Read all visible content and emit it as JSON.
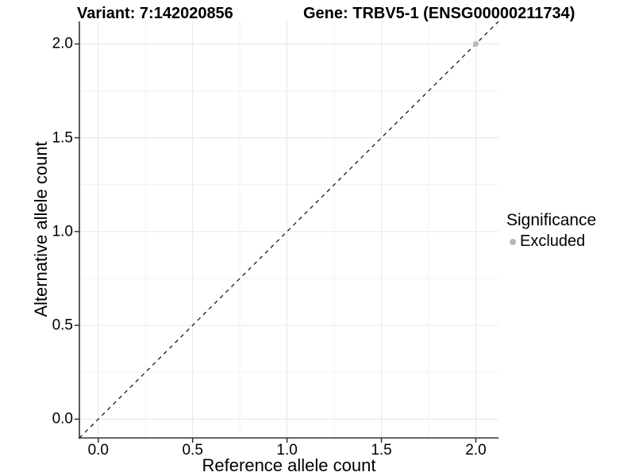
{
  "header": {
    "variant_title": "Variant: 7:142020856",
    "gene_title": "Gene: TRBV5-1 (ENSG00000211734)"
  },
  "legend": {
    "title": "Significance",
    "items": [
      {
        "label": "Excluded",
        "color": "#b8b8b8"
      }
    ]
  },
  "colors": {
    "grid_major": "#e6e6e6",
    "grid_minor": "#f2f2f2",
    "axis_line": "#333333",
    "tick_mark": "#333333",
    "identity_line": "#1a1a1a",
    "text": "#000000",
    "background": "#ffffff"
  },
  "chart_data": {
    "type": "scatter",
    "title": "Variant: 7:142020856   Gene: TRBV5-1 (ENSG00000211734)",
    "xlabel": "Reference allele count",
    "ylabel": "Alternative allele count",
    "xlim": [
      -0.1,
      2.12
    ],
    "ylim": [
      -0.1,
      2.12
    ],
    "x_ticks": [
      0.0,
      0.5,
      1.0,
      1.5,
      2.0
    ],
    "y_ticks": [
      0.0,
      0.5,
      1.0,
      1.5,
      2.0
    ],
    "tick_label_format": "one_decimal",
    "minor_grid_step": 0.25,
    "grid": true,
    "legend_position": "right",
    "legend_title": "Significance",
    "reference_line": {
      "kind": "identity",
      "slope": 1,
      "intercept": 0,
      "style": "dashed"
    },
    "series": [
      {
        "name": "Excluded",
        "color": "#b8b8b8",
        "points": [
          {
            "x": 2.0,
            "y": 2.0
          }
        ]
      }
    ]
  }
}
